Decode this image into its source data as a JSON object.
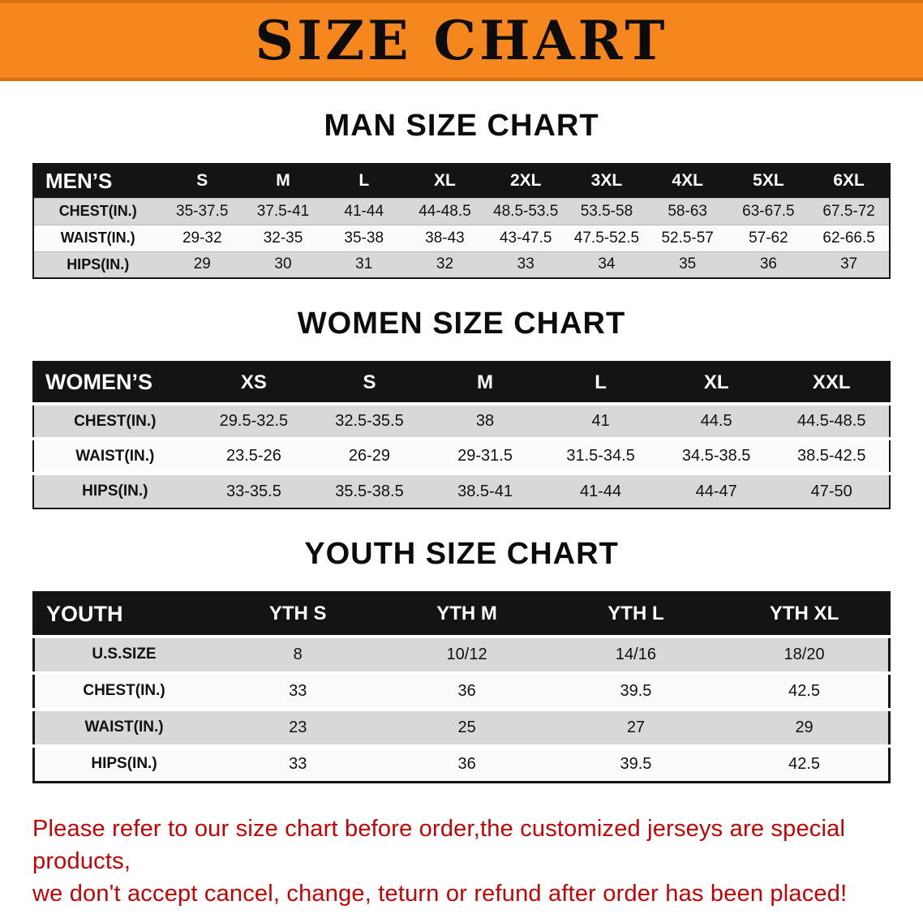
{
  "banner": {
    "title": "SIZE CHART"
  },
  "colors": {
    "banner_bg": "#f6861e",
    "table_header_bg": "#141414",
    "row_shade": "#d8d8d8",
    "note_text": "#c40404"
  },
  "sections": [
    {
      "heading": "MAN SIZE CHART",
      "table": {
        "header": [
          "MEN’S",
          "S",
          "M",
          "L",
          "XL",
          "2XL",
          "3XL",
          "4XL",
          "5XL",
          "6XL"
        ],
        "rows": [
          [
            "CHEST(IN.)",
            "35-37.5",
            "37.5-41",
            "41-44",
            "44-48.5",
            "48.5-53.5",
            "53.5-58",
            "58-63",
            "63-67.5",
            "67.5-72"
          ],
          [
            "WAIST(IN.)",
            "29-32",
            "32-35",
            "35-38",
            "38-43",
            "43-47.5",
            "47.5-52.5",
            "52.5-57",
            "57-62",
            "62-66.5"
          ],
          [
            "HIPS(IN.)",
            "29",
            "30",
            "31",
            "32",
            "33",
            "34",
            "35",
            "36",
            "37"
          ]
        ]
      }
    },
    {
      "heading": "WOMEN SIZE CHART",
      "table": {
        "header": [
          "WOMEN’S",
          "XS",
          "S",
          "M",
          "L",
          "XL",
          "XXL"
        ],
        "rows": [
          [
            "CHEST(IN.)",
            "29.5-32.5",
            "32.5-35.5",
            "38",
            "41",
            "44.5",
            "44.5-48.5"
          ],
          [
            "WAIST(IN.)",
            "23.5-26",
            "26-29",
            "29-31.5",
            "31.5-34.5",
            "34.5-38.5",
            "38.5-42.5"
          ],
          [
            "HIPS(IN.)",
            "33-35.5",
            "35.5-38.5",
            "38.5-41",
            "41-44",
            "44-47",
            "47-50"
          ]
        ]
      }
    },
    {
      "heading": "YOUTH SIZE CHART",
      "table": {
        "header": [
          "YOUTH",
          "YTH S",
          "YTH M",
          "YTH L",
          "YTH XL"
        ],
        "rows": [
          [
            "U.S.SIZE",
            "8",
            "10/12",
            "14/16",
            "18/20"
          ],
          [
            "CHEST(IN.)",
            "33",
            "36",
            "39.5",
            "42.5"
          ],
          [
            "WAIST(IN.)",
            "23",
            "25",
            "27",
            "29"
          ],
          [
            "HIPS(IN.)",
            "33",
            "36",
            "39.5",
            "42.5"
          ]
        ]
      }
    }
  ],
  "footer": {
    "line1": "Please refer to our size chart before order,the customized jerseys are special products,",
    "line2": "we don't accept cancel, change, teturn or refund after order has been placed!"
  }
}
